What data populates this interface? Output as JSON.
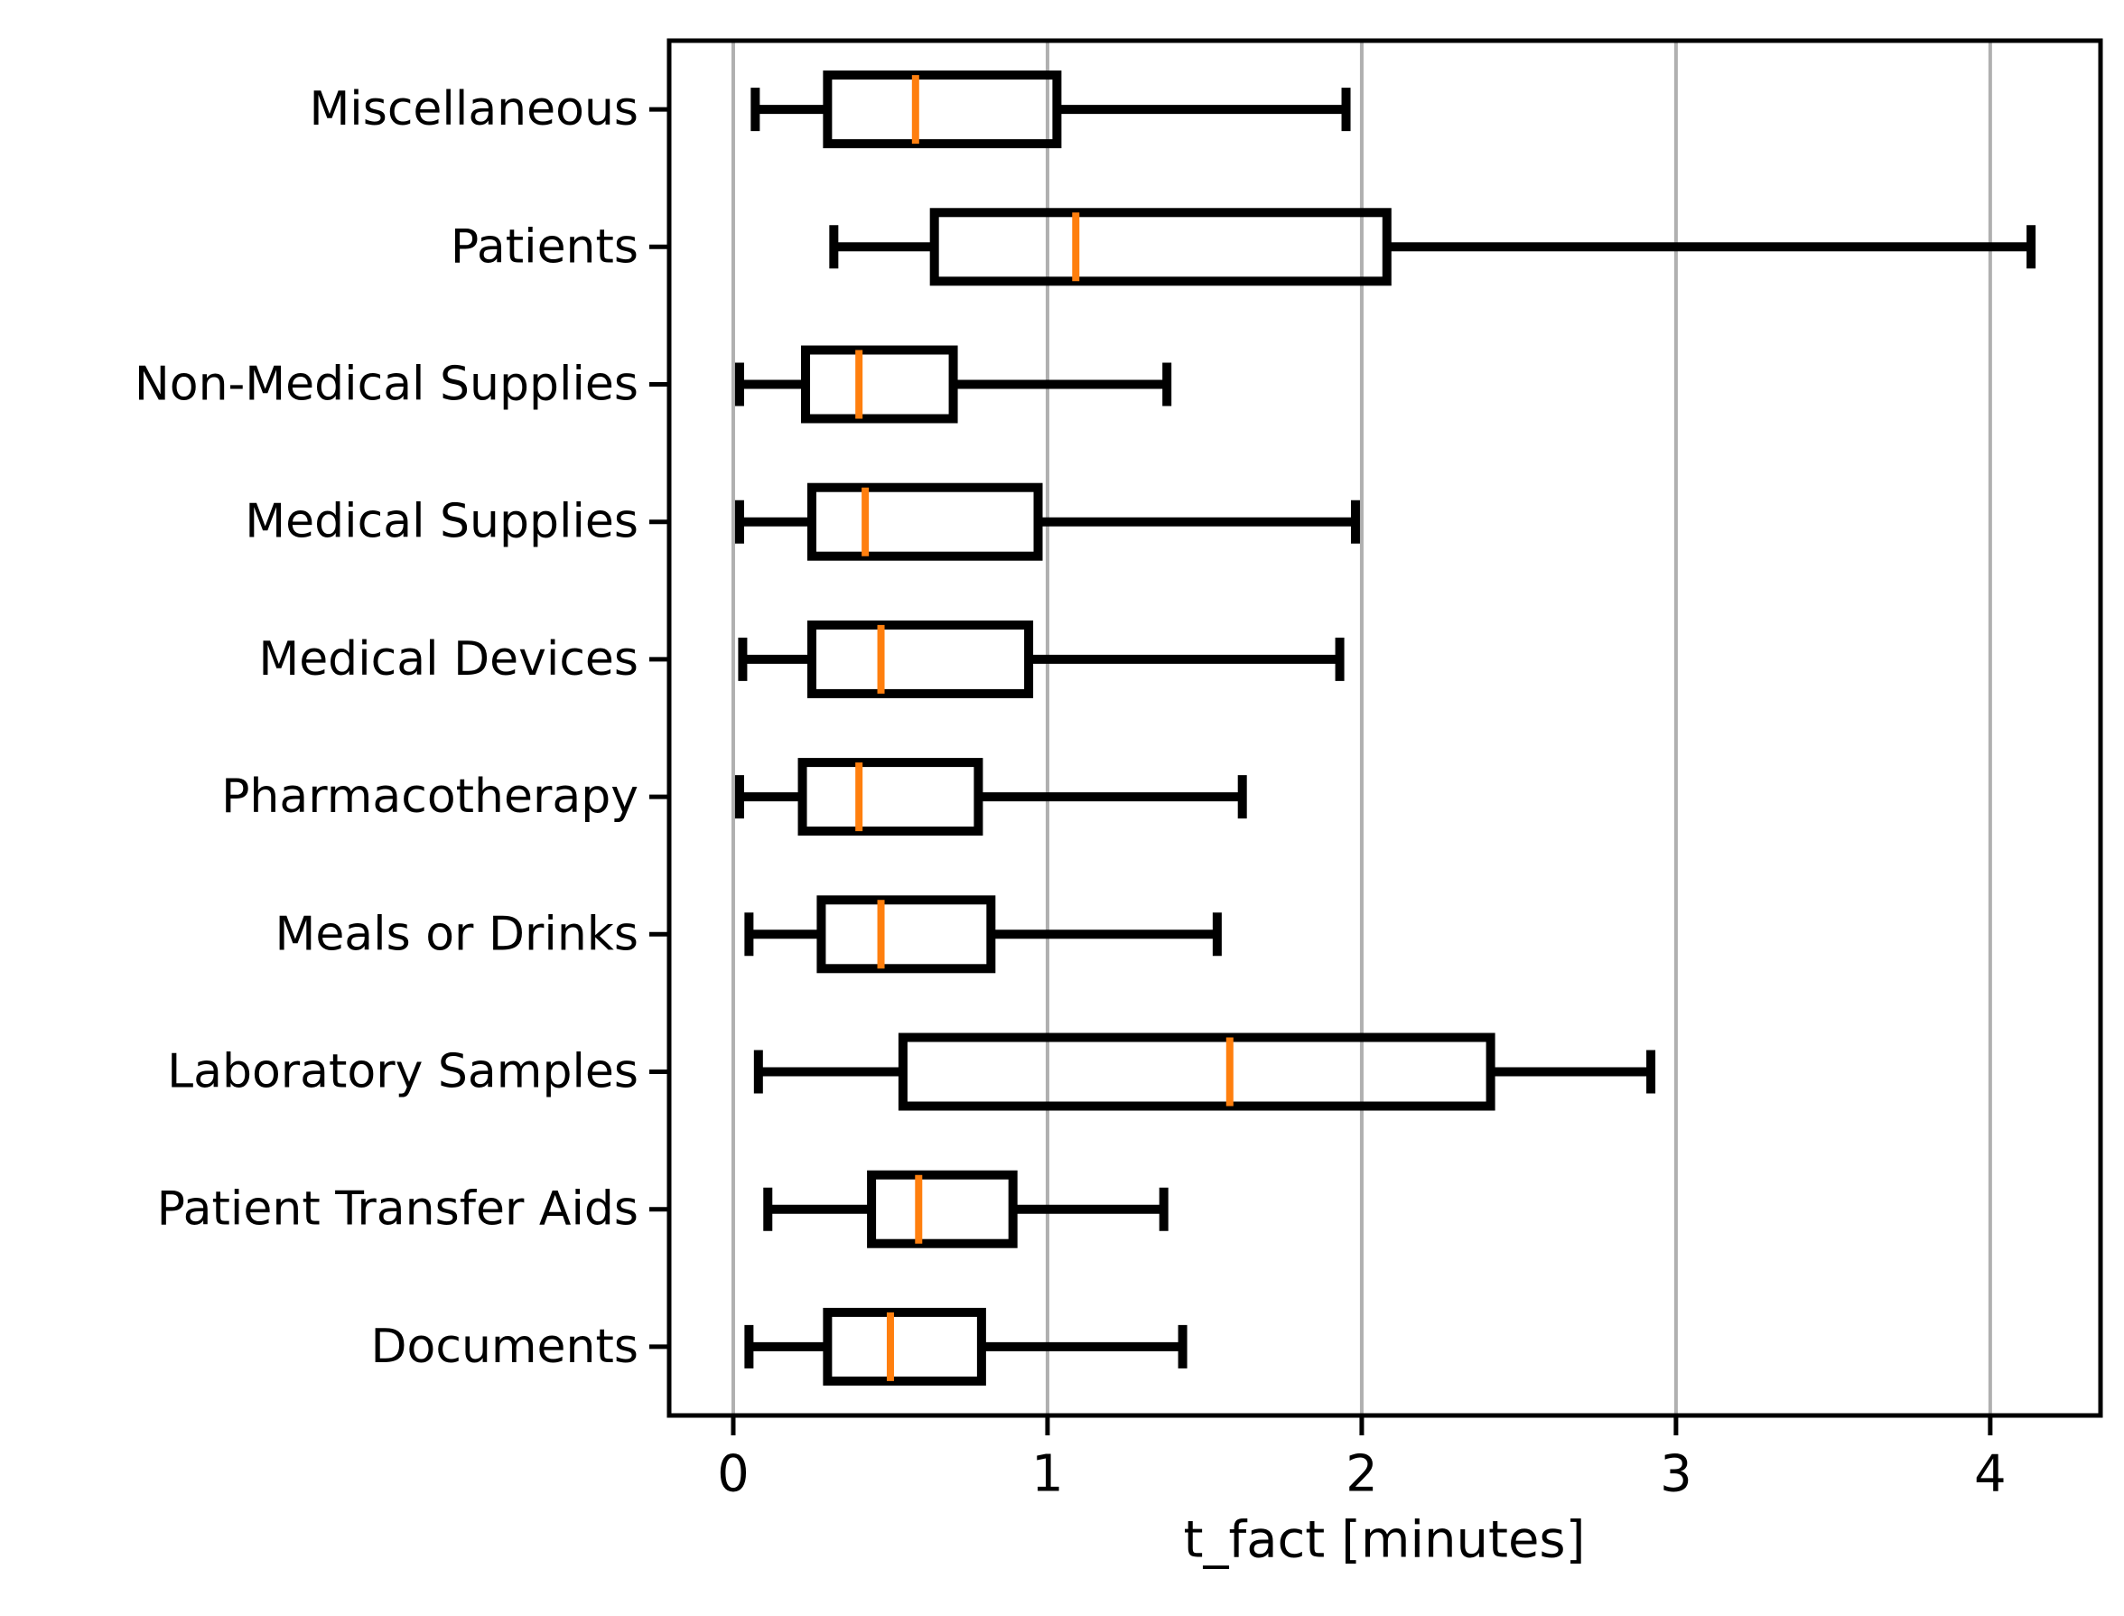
{
  "figure": {
    "background": "#ffffff"
  },
  "chart_data": {
    "type": "box",
    "orientation": "horizontal",
    "title": "",
    "xlabel": "t_fact [minutes]",
    "ylabel": "",
    "xlim": [
      -0.204,
      4.351
    ],
    "xticks": [
      0,
      1,
      2,
      3,
      4
    ],
    "grid": true,
    "legend": "none",
    "categories": [
      "Miscellaneous",
      "Patients",
      "Non-Medical Supplies",
      "Medical Supplies",
      "Medical Devices",
      "Pharmacotherapy",
      "Meals or Drinks",
      "Laboratory Samples",
      "Patient Transfer Aids",
      "Documents"
    ],
    "boxes": [
      {
        "label": "Miscellaneous",
        "whislo": 0.07,
        "q1": 0.3,
        "med": 0.58,
        "q3": 1.03,
        "whishi": 1.95
      },
      {
        "label": "Patients",
        "whislo": 0.32,
        "q1": 0.64,
        "med": 1.09,
        "q3": 2.08,
        "whishi": 4.13
      },
      {
        "label": "Non-Medical Supplies",
        "whislo": 0.02,
        "q1": 0.23,
        "med": 0.4,
        "q3": 0.7,
        "whishi": 1.38
      },
      {
        "label": "Medical Supplies",
        "whislo": 0.02,
        "q1": 0.25,
        "med": 0.42,
        "q3": 0.97,
        "whishi": 1.98
      },
      {
        "label": "Medical Devices",
        "whislo": 0.03,
        "q1": 0.25,
        "med": 0.47,
        "q3": 0.94,
        "whishi": 1.93
      },
      {
        "label": "Pharmacotherapy",
        "whislo": 0.02,
        "q1": 0.22,
        "med": 0.4,
        "q3": 0.78,
        "whishi": 1.62
      },
      {
        "label": "Meals or Drinks",
        "whislo": 0.05,
        "q1": 0.28,
        "med": 0.47,
        "q3": 0.82,
        "whishi": 1.54
      },
      {
        "label": "Laboratory Samples",
        "whislo": 0.08,
        "q1": 0.54,
        "med": 1.58,
        "q3": 2.41,
        "whishi": 2.92
      },
      {
        "label": "Patient Transfer Aids",
        "whislo": 0.11,
        "q1": 0.44,
        "med": 0.59,
        "q3": 0.89,
        "whishi": 1.37
      },
      {
        "label": "Documents",
        "whislo": 0.05,
        "q1": 0.3,
        "med": 0.5,
        "q3": 0.79,
        "whishi": 1.43
      }
    ],
    "colors": {
      "box": "#000000",
      "whisker": "#000000",
      "median": "#ff7f0e",
      "grid": "#b0b0b0",
      "spine": "#000000",
      "text": "#000000",
      "background": "#ffffff"
    }
  }
}
